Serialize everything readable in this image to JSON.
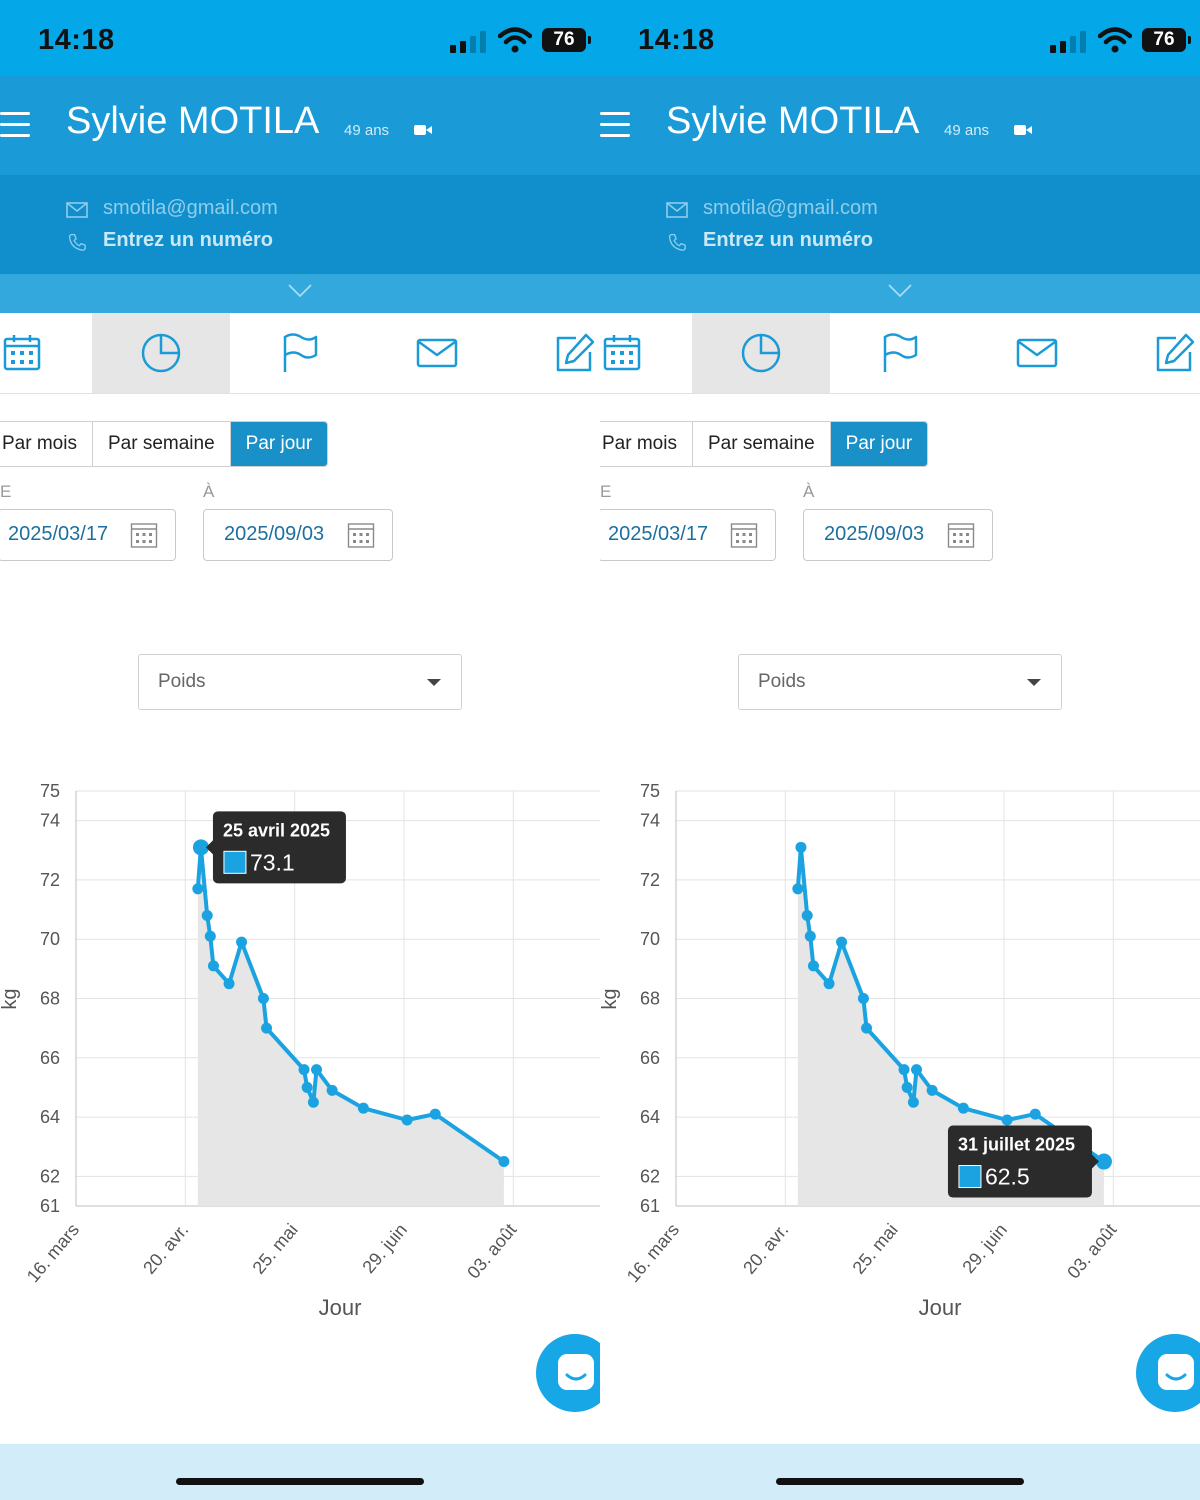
{
  "status_bar": {
    "time": "14:18",
    "battery": "76"
  },
  "header": {
    "patient_name": "Sylvie MOTILA",
    "age": "49 ans",
    "email": "smotila@gmail.com",
    "phone_placeholder": "Entrez un numéro"
  },
  "tabs": [
    {
      "icon": "calendar-icon",
      "active": false
    },
    {
      "icon": "pie-chart-icon",
      "active": true
    },
    {
      "icon": "flag-icon",
      "active": false
    },
    {
      "icon": "mail-icon",
      "active": false
    },
    {
      "icon": "edit-icon",
      "active": false
    }
  ],
  "period_toggle": {
    "options": [
      "Par mois",
      "Par semaine",
      "Par jour"
    ],
    "selected": "Par jour"
  },
  "date_range": {
    "from_label": "E",
    "from_value": "2025/03/17",
    "to_label": "À",
    "to_value": "2025/09/03"
  },
  "metric_select": {
    "value": "Poids"
  },
  "colors": {
    "accent": "#1a9ad6",
    "series": "#1aa3e0",
    "area": "#e6e6e6"
  },
  "chart_data": {
    "type": "area",
    "xlabel": "Jour",
    "ylabel": "kg",
    "ylim": [
      61,
      75
    ],
    "yticks": [
      61,
      62,
      64,
      66,
      68,
      70,
      72,
      74,
      75
    ],
    "xticks": [
      "16. mars",
      "20. avr.",
      "25. mai",
      "29. juin",
      "03. août"
    ],
    "grid": true,
    "series": [
      {
        "values": [
          {
            "date": "2025-04-24",
            "y": 71.7
          },
          {
            "date": "2025-04-25",
            "y": 73.1
          },
          {
            "date": "2025-04-27",
            "y": 70.8
          },
          {
            "date": "2025-04-28",
            "y": 70.1
          },
          {
            "date": "2025-04-29",
            "y": 69.1
          },
          {
            "date": "2025-05-04",
            "y": 68.5
          },
          {
            "date": "2025-05-08",
            "y": 69.9
          },
          {
            "date": "2025-05-15",
            "y": 68.0
          },
          {
            "date": "2025-05-16",
            "y": 67.0
          },
          {
            "date": "2025-05-28",
            "y": 65.6
          },
          {
            "date": "2025-05-29",
            "y": 65.0
          },
          {
            "date": "2025-05-31",
            "y": 64.5
          },
          {
            "date": "2025-06-01",
            "y": 65.6
          },
          {
            "date": "2025-06-06",
            "y": 64.9
          },
          {
            "date": "2025-06-16",
            "y": 64.3
          },
          {
            "date": "2025-06-30",
            "y": 63.9
          },
          {
            "date": "2025-07-09",
            "y": 64.1
          },
          {
            "date": "2025-07-31",
            "y": 62.5
          }
        ]
      }
    ],
    "tooltips": [
      {
        "panel": "left",
        "label": "25 avril 2025",
        "value": "73.1",
        "point_index": 1
      },
      {
        "panel": "right",
        "label": "31 juillet 2025",
        "value": "62.5",
        "point_index": 17
      }
    ]
  }
}
